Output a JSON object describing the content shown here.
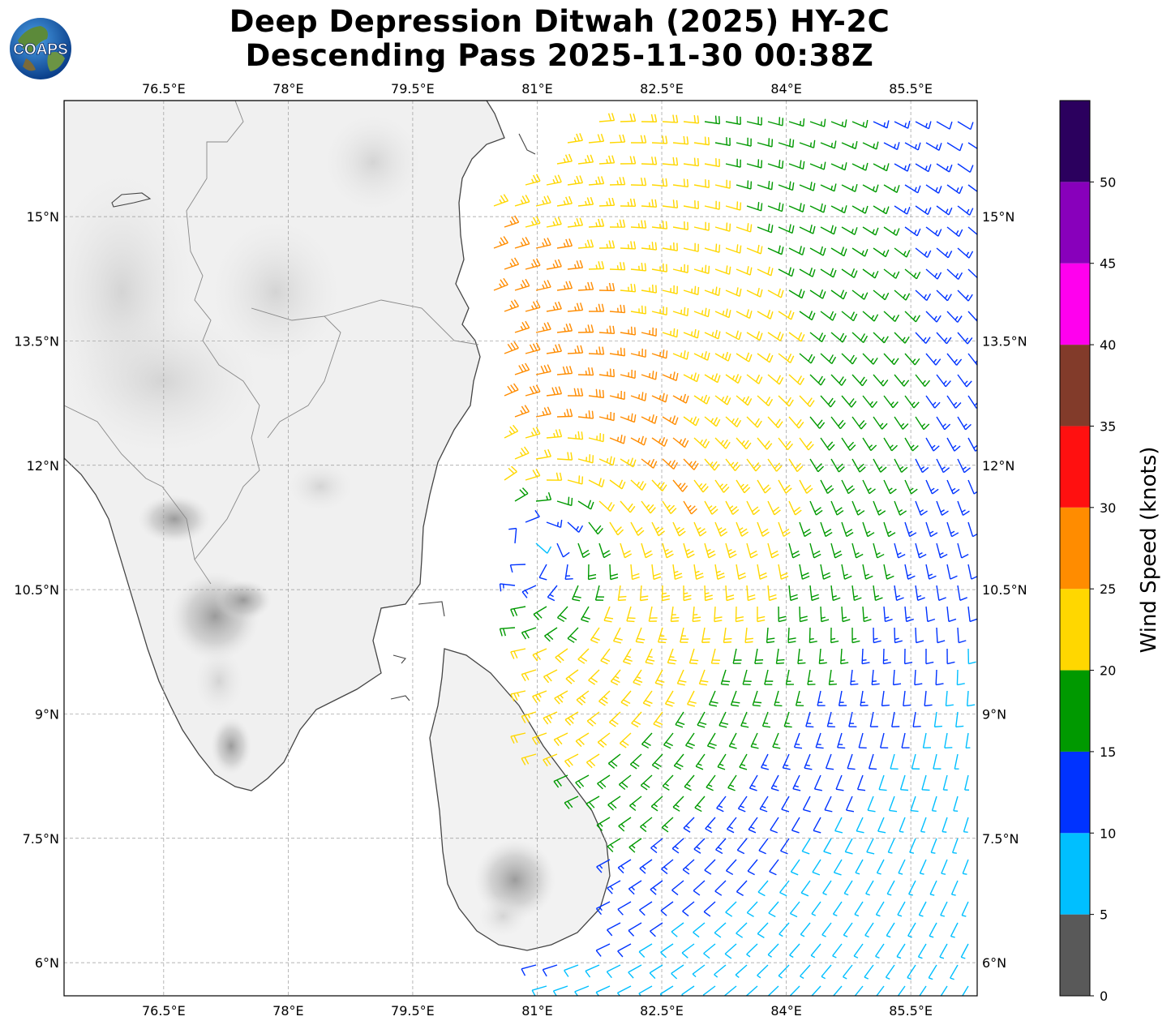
{
  "title": {
    "line1": "Deep Depression Ditwah (2025) HY-2C",
    "line2": "Descending Pass 2025-11-30 00:38Z"
  },
  "logo": {
    "text": "COAPS",
    "icon": "globe-logo-icon"
  },
  "map": {
    "lon_ticks": [
      "76.5°E",
      "78°E",
      "79.5°E",
      "81°E",
      "82.5°E",
      "84°E",
      "85.5°E"
    ],
    "lat_ticks": [
      "15°N",
      "13.5°N",
      "12°N",
      "10.5°N",
      "9°N",
      "7.5°N",
      "6°N"
    ],
    "lon_values": [
      76.5,
      78,
      79.5,
      81,
      82.5,
      84,
      85.5
    ],
    "lat_values": [
      15,
      13.5,
      12,
      10.5,
      9,
      7.5,
      6
    ],
    "lon_range": [
      75.3,
      86.3
    ],
    "lat_range": [
      5.6,
      16.4
    ],
    "storm_center": {
      "lon": 80.9,
      "lat": 11.0
    },
    "gridlines": true,
    "land_shading": "grayscale-topography"
  },
  "colorbar": {
    "label": "Wind Speed (knots)",
    "ticks": [
      "0",
      "5",
      "10",
      "15",
      "20",
      "25",
      "30",
      "35",
      "40",
      "45",
      "50"
    ],
    "bins": [
      {
        "min": 0,
        "max": 5,
        "color": "#595959"
      },
      {
        "min": 5,
        "max": 10,
        "color": "#00bfff"
      },
      {
        "min": 10,
        "max": 15,
        "color": "#0033ff"
      },
      {
        "min": 15,
        "max": 20,
        "color": "#009900"
      },
      {
        "min": 20,
        "max": 25,
        "color": "#ffd700"
      },
      {
        "min": 25,
        "max": 30,
        "color": "#ff8c00"
      },
      {
        "min": 30,
        "max": 35,
        "color": "#ff1010"
      },
      {
        "min": 35,
        "max": 40,
        "color": "#823b2a"
      },
      {
        "min": 40,
        "max": 45,
        "color": "#ff00ee"
      },
      {
        "min": 45,
        "max": 50,
        "color": "#8800bb"
      },
      {
        "min": 50,
        "max": 55,
        "color": "#2b005e"
      }
    ]
  }
}
